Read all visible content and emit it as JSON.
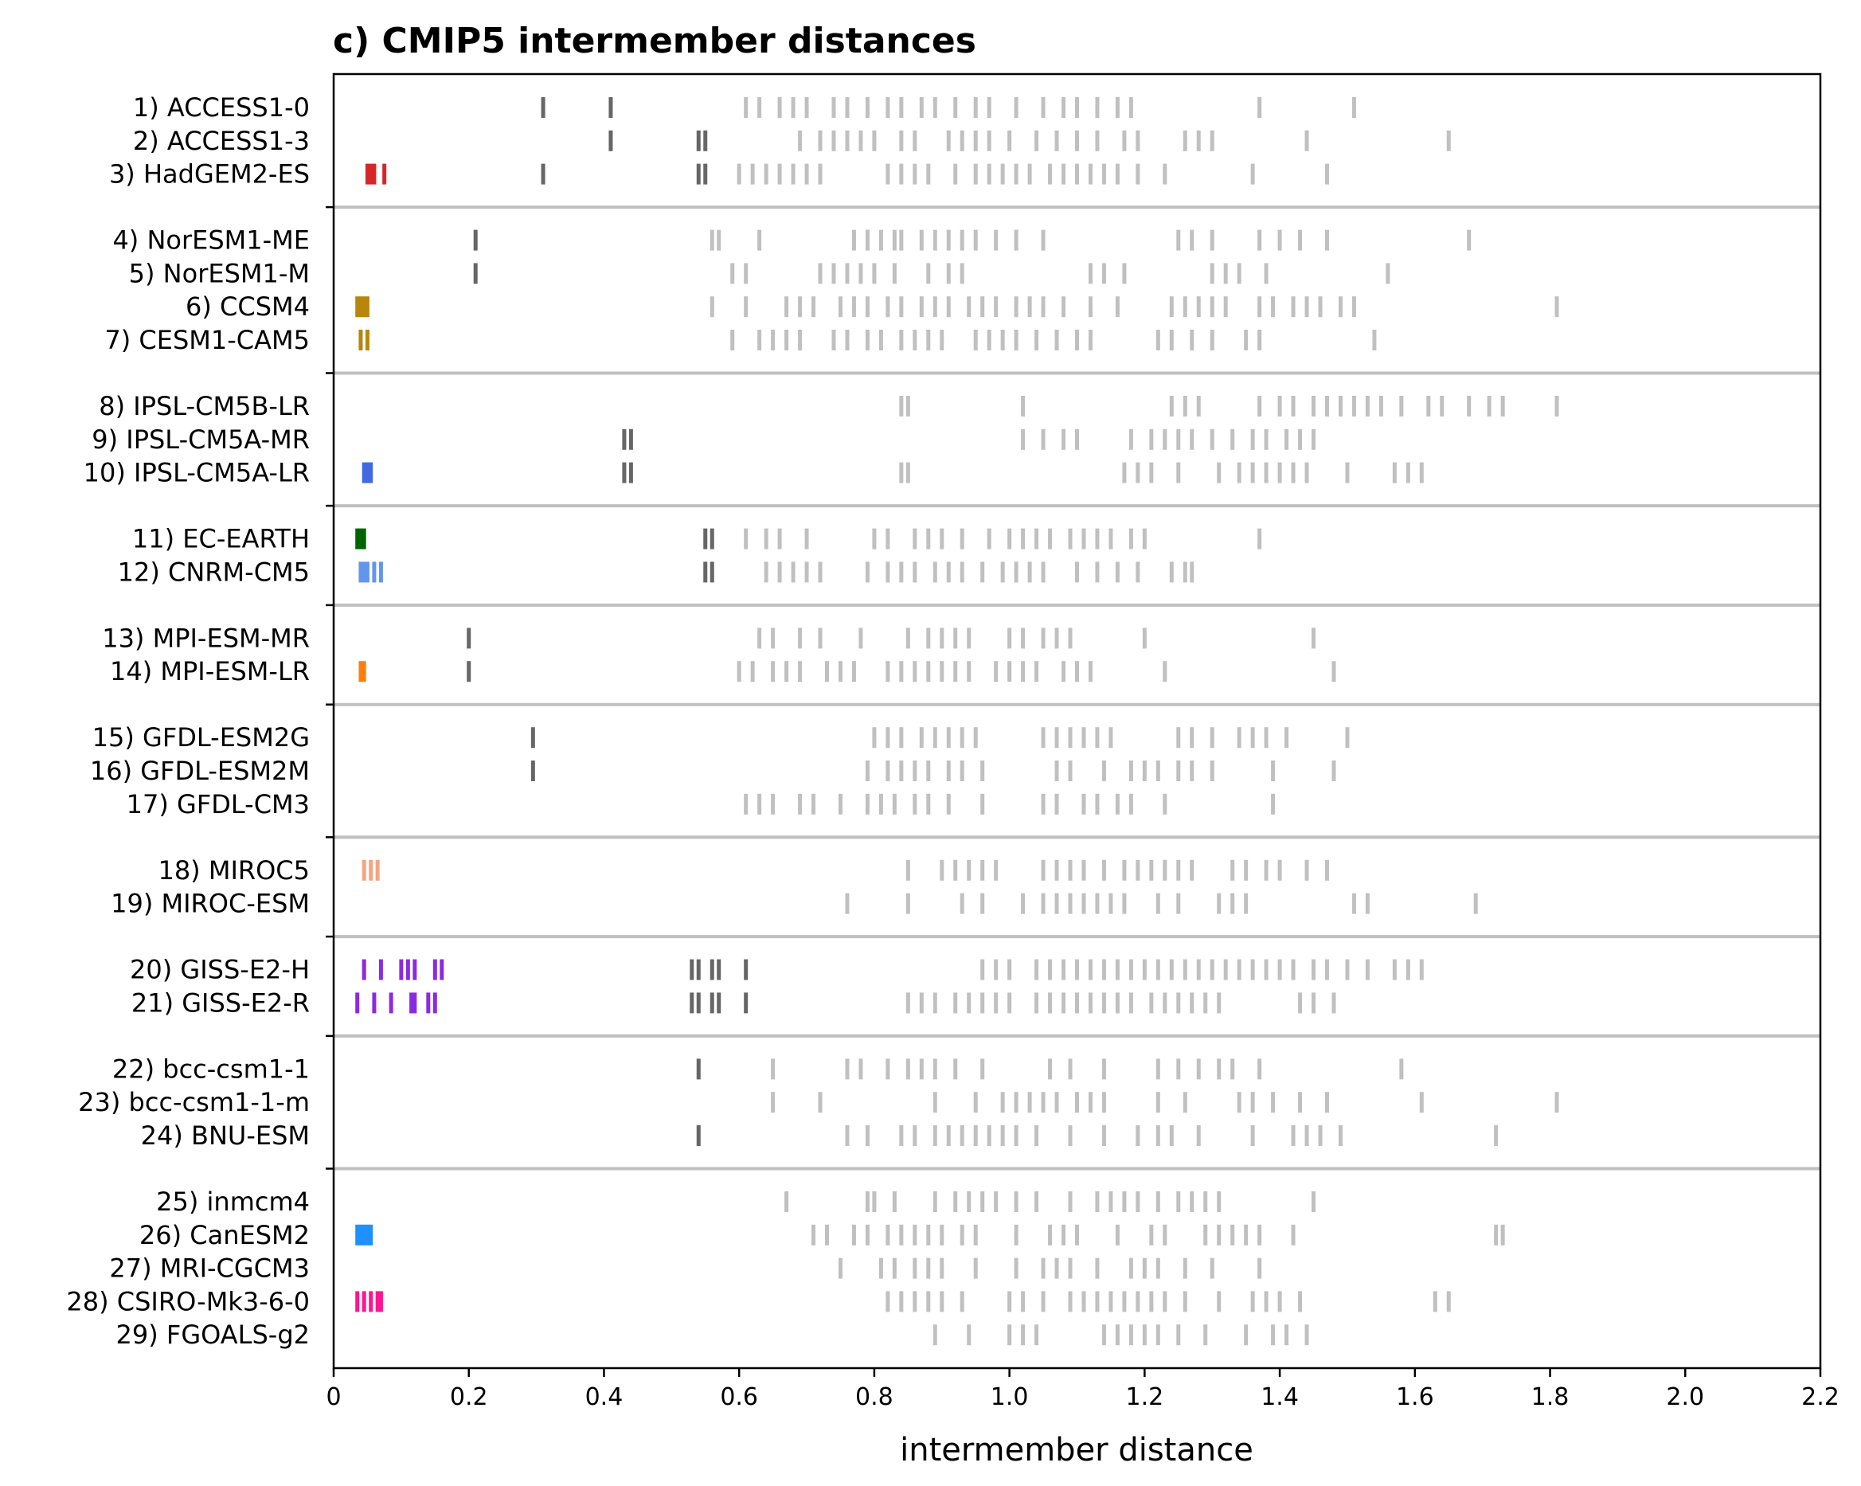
{
  "chart_data": {
    "type": "strip",
    "title": "c) CMIP5 intermember distances",
    "xlabel": "intermember distance",
    "xlim": [
      0,
      2.2
    ],
    "xticks": [
      0,
      0.2,
      0.4,
      0.6,
      0.8,
      1.0,
      1.2,
      1.4,
      1.6,
      1.8,
      2.0,
      2.2
    ],
    "xtick_labels": [
      "0",
      "0.2",
      "0.4",
      "0.6",
      "0.8",
      "1.0",
      "1.2",
      "1.4",
      "1.6",
      "1.8",
      "2.0",
      "2.2"
    ],
    "colors": {
      "other_model": "#c0c0c0",
      "related_model": "#666666"
    },
    "group_sizes": [
      3,
      4,
      3,
      2,
      2,
      3,
      2,
      2,
      3,
      5
    ],
    "models": [
      {
        "label": "1) ACCESS1-0",
        "color": null,
        "self": [],
        "related": [
          0.31,
          0.41
        ],
        "others": [
          0.61,
          0.63,
          0.66,
          0.68,
          0.7,
          0.74,
          0.76,
          0.79,
          0.82,
          0.84,
          0.87,
          0.89,
          0.92,
          0.95,
          0.97,
          1.01,
          1.05,
          1.08,
          1.1,
          1.13,
          1.16,
          1.18,
          1.37,
          1.51
        ]
      },
      {
        "label": "2) ACCESS1-3",
        "color": null,
        "self": [],
        "related": [
          0.41,
          0.54,
          0.55
        ],
        "others": [
          0.69,
          0.72,
          0.74,
          0.76,
          0.78,
          0.8,
          0.84,
          0.86,
          0.91,
          0.93,
          0.95,
          0.97,
          1.0,
          1.04,
          1.07,
          1.1,
          1.13,
          1.17,
          1.19,
          1.26,
          1.28,
          1.3,
          1.44,
          1.65
        ]
      },
      {
        "label": "3) HadGEM2-ES",
        "color": "#d62728",
        "self": [
          0.05,
          0.055,
          0.06,
          0.075
        ],
        "related": [
          0.31,
          0.54,
          0.55
        ],
        "others": [
          0.6,
          0.62,
          0.64,
          0.66,
          0.68,
          0.7,
          0.72,
          0.82,
          0.84,
          0.86,
          0.88,
          0.92,
          0.95,
          0.97,
          0.99,
          1.01,
          1.03,
          1.06,
          1.08,
          1.1,
          1.12,
          1.14,
          1.16,
          1.19,
          1.23,
          1.36,
          1.47
        ]
      },
      {
        "label": "4) NorESM1-ME",
        "color": null,
        "self": [],
        "related": [
          0.21
        ],
        "others": [
          0.56,
          0.57,
          0.63,
          0.77,
          0.79,
          0.81,
          0.83,
          0.84,
          0.87,
          0.89,
          0.91,
          0.93,
          0.95,
          0.98,
          1.01,
          1.05,
          1.25,
          1.27,
          1.3,
          1.37,
          1.4,
          1.43,
          1.47,
          1.68
        ]
      },
      {
        "label": "5) NorESM1-M",
        "color": null,
        "self": [],
        "related": [
          0.21
        ],
        "others": [
          0.59,
          0.61,
          0.72,
          0.74,
          0.76,
          0.78,
          0.8,
          0.83,
          0.88,
          0.91,
          0.93,
          1.12,
          1.14,
          1.17,
          1.3,
          1.32,
          1.34,
          1.38,
          1.56
        ]
      },
      {
        "label": "6) CCSM4",
        "color": "#b8860b",
        "self": [
          0.035,
          0.04,
          0.045,
          0.05
        ],
        "related": [],
        "others": [
          0.56,
          0.61,
          0.67,
          0.69,
          0.71,
          0.75,
          0.77,
          0.79,
          0.82,
          0.84,
          0.87,
          0.89,
          0.91,
          0.94,
          0.96,
          0.98,
          1.01,
          1.03,
          1.05,
          1.08,
          1.12,
          1.16,
          1.24,
          1.26,
          1.28,
          1.3,
          1.32,
          1.37,
          1.39,
          1.42,
          1.44,
          1.46,
          1.49,
          1.51,
          1.81
        ]
      },
      {
        "label": "7) CESM1-CAM5",
        "color": "#b8860b",
        "self": [
          0.04,
          0.05
        ],
        "related": [],
        "others": [
          0.59,
          0.63,
          0.65,
          0.67,
          0.69,
          0.74,
          0.76,
          0.79,
          0.81,
          0.84,
          0.86,
          0.88,
          0.9,
          0.95,
          0.97,
          0.99,
          1.01,
          1.04,
          1.07,
          1.1,
          1.12,
          1.22,
          1.24,
          1.27,
          1.3,
          1.35,
          1.37,
          1.54
        ]
      },
      {
        "label": "8) IPSL-CM5B-LR",
        "color": null,
        "self": [],
        "related": [],
        "others": [
          0.84,
          0.85,
          1.02,
          1.24,
          1.26,
          1.28,
          1.37,
          1.4,
          1.42,
          1.45,
          1.47,
          1.49,
          1.51,
          1.53,
          1.55,
          1.58,
          1.62,
          1.64,
          1.68,
          1.71,
          1.73,
          1.81
        ]
      },
      {
        "label": "9) IPSL-CM5A-MR",
        "color": null,
        "self": [],
        "related": [
          0.43,
          0.44
        ],
        "others": [
          1.02,
          1.05,
          1.08,
          1.1,
          1.18,
          1.21,
          1.23,
          1.25,
          1.27,
          1.3,
          1.33,
          1.36,
          1.38,
          1.41,
          1.43,
          1.45
        ]
      },
      {
        "label": "10) IPSL-CM5A-LR",
        "color": "#4169e1",
        "self": [
          0.045,
          0.05,
          0.055
        ],
        "related": [
          0.43,
          0.44
        ],
        "others": [
          0.84,
          0.85,
          1.17,
          1.19,
          1.21,
          1.25,
          1.31,
          1.34,
          1.36,
          1.38,
          1.4,
          1.42,
          1.44,
          1.5,
          1.57,
          1.59,
          1.61
        ]
      },
      {
        "label": "11) EC-EARTH",
        "color": "#006400",
        "self": [
          0.035,
          0.04,
          0.045
        ],
        "related": [
          0.55,
          0.56
        ],
        "others": [
          0.61,
          0.64,
          0.66,
          0.7,
          0.8,
          0.82,
          0.86,
          0.88,
          0.9,
          0.93,
          0.97,
          1.0,
          1.02,
          1.04,
          1.06,
          1.09,
          1.11,
          1.13,
          1.15,
          1.18,
          1.2,
          1.37
        ]
      },
      {
        "label": "12) CNRM-CM5",
        "color": "#6495ed",
        "self": [
          0.04,
          0.045,
          0.05,
          0.06,
          0.07
        ],
        "related": [
          0.55,
          0.56
        ],
        "others": [
          0.64,
          0.66,
          0.68,
          0.7,
          0.72,
          0.79,
          0.82,
          0.84,
          0.86,
          0.89,
          0.91,
          0.93,
          0.96,
          0.99,
          1.01,
          1.03,
          1.05,
          1.1,
          1.13,
          1.16,
          1.19,
          1.24,
          1.26,
          1.27
        ]
      },
      {
        "label": "13) MPI-ESM-MR",
        "color": null,
        "self": [],
        "related": [
          0.2
        ],
        "others": [
          0.63,
          0.65,
          0.69,
          0.72,
          0.78,
          0.85,
          0.88,
          0.9,
          0.92,
          0.94,
          1.0,
          1.02,
          1.05,
          1.07,
          1.09,
          1.2,
          1.45
        ]
      },
      {
        "label": "14) MPI-ESM-LR",
        "color": "#ff7f0e",
        "self": [
          0.04,
          0.045
        ],
        "related": [
          0.2
        ],
        "others": [
          0.6,
          0.62,
          0.65,
          0.67,
          0.69,
          0.73,
          0.75,
          0.77,
          0.82,
          0.84,
          0.86,
          0.88,
          0.9,
          0.92,
          0.94,
          0.98,
          1.0,
          1.02,
          1.04,
          1.08,
          1.1,
          1.12,
          1.23,
          1.48
        ]
      },
      {
        "label": "15) GFDL-ESM2G",
        "color": null,
        "self": [],
        "related": [
          0.295
        ],
        "others": [
          0.8,
          0.82,
          0.84,
          0.87,
          0.89,
          0.91,
          0.93,
          0.95,
          1.05,
          1.07,
          1.09,
          1.11,
          1.13,
          1.15,
          1.25,
          1.27,
          1.3,
          1.34,
          1.36,
          1.38,
          1.41,
          1.5
        ]
      },
      {
        "label": "16) GFDL-ESM2M",
        "color": null,
        "self": [],
        "related": [
          0.295
        ],
        "others": [
          0.79,
          0.82,
          0.84,
          0.86,
          0.88,
          0.91,
          0.93,
          0.96,
          1.07,
          1.09,
          1.14,
          1.18,
          1.2,
          1.22,
          1.25,
          1.27,
          1.3,
          1.39,
          1.48
        ]
      },
      {
        "label": "17) GFDL-CM3",
        "color": null,
        "self": [],
        "related": [],
        "others": [
          0.61,
          0.63,
          0.65,
          0.69,
          0.71,
          0.75,
          0.79,
          0.81,
          0.83,
          0.86,
          0.88,
          0.91,
          0.96,
          1.05,
          1.07,
          1.11,
          1.13,
          1.16,
          1.18,
          1.23,
          1.39
        ]
      },
      {
        "label": "18) MIROC5",
        "color": "#f4a582",
        "self": [
          0.045,
          0.055,
          0.065
        ],
        "related": [],
        "others": [
          0.85,
          0.9,
          0.92,
          0.94,
          0.96,
          0.98,
          1.05,
          1.07,
          1.09,
          1.11,
          1.14,
          1.17,
          1.19,
          1.21,
          1.23,
          1.25,
          1.27,
          1.33,
          1.35,
          1.38,
          1.4,
          1.44,
          1.47
        ]
      },
      {
        "label": "19) MIROC-ESM",
        "color": null,
        "self": [],
        "related": [],
        "others": [
          0.76,
          0.85,
          0.93,
          0.96,
          1.02,
          1.05,
          1.07,
          1.09,
          1.11,
          1.13,
          1.15,
          1.17,
          1.22,
          1.25,
          1.31,
          1.33,
          1.35,
          1.51,
          1.53,
          1.69
        ]
      },
      {
        "label": "20) GISS-E2-H",
        "color": "#8a2be2",
        "self": [
          0.045,
          0.07,
          0.1,
          0.11,
          0.12,
          0.15,
          0.16
        ],
        "related": [
          0.53,
          0.54,
          0.56,
          0.57,
          0.61
        ],
        "others": [
          0.96,
          0.98,
          1.0,
          1.04,
          1.06,
          1.08,
          1.1,
          1.12,
          1.14,
          1.16,
          1.18,
          1.2,
          1.22,
          1.24,
          1.26,
          1.28,
          1.3,
          1.32,
          1.34,
          1.36,
          1.38,
          1.4,
          1.42,
          1.45,
          1.47,
          1.5,
          1.53,
          1.57,
          1.59,
          1.61
        ]
      },
      {
        "label": "21) GISS-E2-R",
        "color": "#8a2be2",
        "self": [
          0.035,
          0.06,
          0.085,
          0.115,
          0.12,
          0.14,
          0.15
        ],
        "related": [
          0.53,
          0.54,
          0.56,
          0.57,
          0.61
        ],
        "others": [
          0.85,
          0.87,
          0.89,
          0.92,
          0.94,
          0.96,
          0.98,
          1.0,
          1.04,
          1.06,
          1.08,
          1.1,
          1.12,
          1.14,
          1.16,
          1.18,
          1.21,
          1.23,
          1.25,
          1.27,
          1.29,
          1.31,
          1.43,
          1.45,
          1.48
        ]
      },
      {
        "label": "22) bcc-csm1-1",
        "color": null,
        "self": [],
        "related": [
          0.54
        ],
        "others": [
          0.65,
          0.76,
          0.78,
          0.82,
          0.85,
          0.87,
          0.89,
          0.92,
          0.96,
          1.06,
          1.09,
          1.14,
          1.22,
          1.25,
          1.28,
          1.31,
          1.33,
          1.37,
          1.58
        ]
      },
      {
        "label": "23) bcc-csm1-1-m",
        "color": null,
        "self": [],
        "related": [],
        "others": [
          0.65,
          0.72,
          0.89,
          0.95,
          0.99,
          1.01,
          1.03,
          1.05,
          1.07,
          1.1,
          1.12,
          1.14,
          1.22,
          1.26,
          1.34,
          1.36,
          1.39,
          1.43,
          1.47,
          1.61,
          1.81
        ]
      },
      {
        "label": "24) BNU-ESM",
        "color": null,
        "self": [],
        "related": [
          0.54
        ],
        "others": [
          0.76,
          0.79,
          0.84,
          0.86,
          0.89,
          0.91,
          0.93,
          0.95,
          0.97,
          0.99,
          1.01,
          1.04,
          1.09,
          1.14,
          1.19,
          1.22,
          1.24,
          1.28,
          1.36,
          1.42,
          1.44,
          1.46,
          1.49,
          1.72
        ]
      },
      {
        "label": "25) inmcm4",
        "color": null,
        "self": [],
        "related": [],
        "others": [
          0.67,
          0.79,
          0.8,
          0.83,
          0.89,
          0.92,
          0.94,
          0.96,
          0.98,
          1.01,
          1.04,
          1.09,
          1.13,
          1.15,
          1.17,
          1.19,
          1.22,
          1.25,
          1.27,
          1.29,
          1.31,
          1.45
        ]
      },
      {
        "label": "26) CanESM2",
        "color": "#1e90ff",
        "self": [
          0.035,
          0.04,
          0.045,
          0.05,
          0.055
        ],
        "related": [],
        "others": [
          0.71,
          0.73,
          0.77,
          0.79,
          0.82,
          0.84,
          0.86,
          0.88,
          0.9,
          0.93,
          0.95,
          1.01,
          1.06,
          1.08,
          1.1,
          1.16,
          1.21,
          1.23,
          1.29,
          1.31,
          1.33,
          1.35,
          1.37,
          1.42,
          1.72,
          1.73
        ]
      },
      {
        "label": "27) MRI-CGCM3",
        "color": null,
        "self": [],
        "related": [],
        "others": [
          0.75,
          0.81,
          0.83,
          0.86,
          0.88,
          0.9,
          0.95,
          1.01,
          1.05,
          1.07,
          1.09,
          1.13,
          1.18,
          1.2,
          1.22,
          1.26,
          1.3,
          1.37
        ]
      },
      {
        "label": "28) CSIRO-Mk3-6-0",
        "color": "#ff1493",
        "self": [
          0.035,
          0.045,
          0.055,
          0.065,
          0.07
        ],
        "related": [],
        "others": [
          0.82,
          0.84,
          0.86,
          0.88,
          0.9,
          0.93,
          1.0,
          1.02,
          1.05,
          1.09,
          1.11,
          1.13,
          1.15,
          1.17,
          1.19,
          1.21,
          1.23,
          1.26,
          1.31,
          1.36,
          1.38,
          1.4,
          1.43,
          1.63,
          1.65
        ]
      },
      {
        "label": "29) FGOALS-g2",
        "color": null,
        "self": [],
        "related": [],
        "others": [
          0.89,
          0.94,
          1.0,
          1.02,
          1.04,
          1.14,
          1.16,
          1.18,
          1.2,
          1.22,
          1.25,
          1.29,
          1.35,
          1.39,
          1.41,
          1.44
        ]
      }
    ]
  }
}
